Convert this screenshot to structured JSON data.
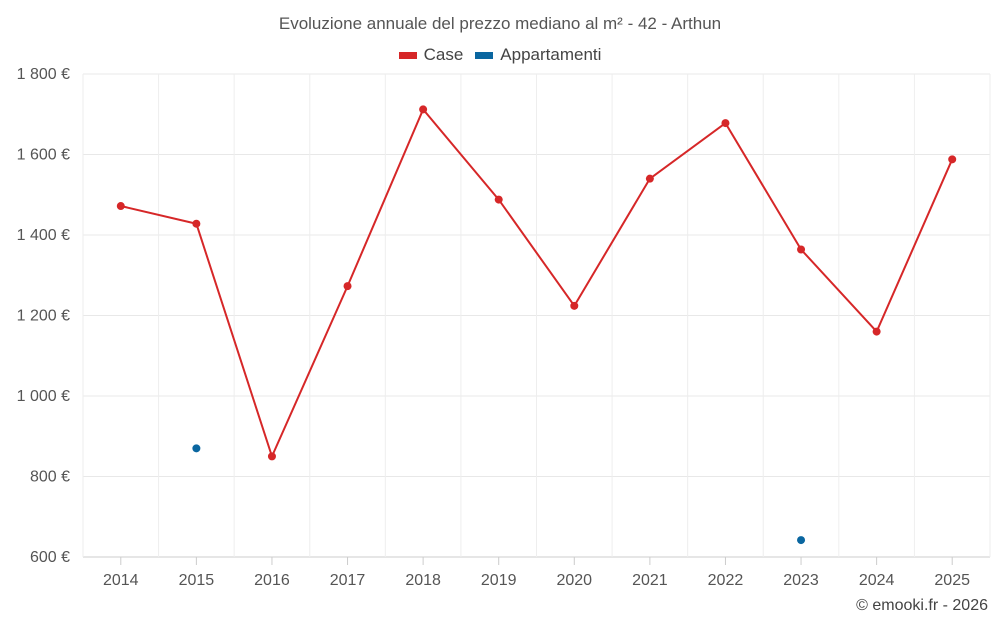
{
  "chart_data": {
    "type": "line",
    "title": "Evoluzione annuale del prezzo mediano al m² - 42 - Arthun",
    "xlabel": "",
    "ylabel": "",
    "categories": [
      "2014",
      "2015",
      "2016",
      "2017",
      "2018",
      "2019",
      "2020",
      "2021",
      "2022",
      "2023",
      "2024",
      "2025"
    ],
    "ylim": [
      600,
      1800
    ],
    "yticks": [
      {
        "value": 600,
        "label": "600 €"
      },
      {
        "value": 800,
        "label": "800 €"
      },
      {
        "value": 1000,
        "label": "1 000 €"
      },
      {
        "value": 1200,
        "label": "1 200 €"
      },
      {
        "value": 1400,
        "label": "1 400 €"
      },
      {
        "value": 1600,
        "label": "1 600 €"
      },
      {
        "value": 1800,
        "label": "1 800 €"
      }
    ],
    "grid": true,
    "legend_position": "top-center",
    "series": [
      {
        "name": "Case",
        "color": "#d62728",
        "values": [
          1472,
          1428,
          850,
          1273,
          1712,
          1488,
          1224,
          1540,
          1678,
          1364,
          1160,
          1588
        ]
      },
      {
        "name": "Appartamenti",
        "color": "#0a66a0",
        "values": [
          null,
          870,
          null,
          null,
          null,
          null,
          null,
          null,
          null,
          642,
          null,
          null
        ]
      }
    ]
  },
  "credit": "© emooki.fr - 2026"
}
